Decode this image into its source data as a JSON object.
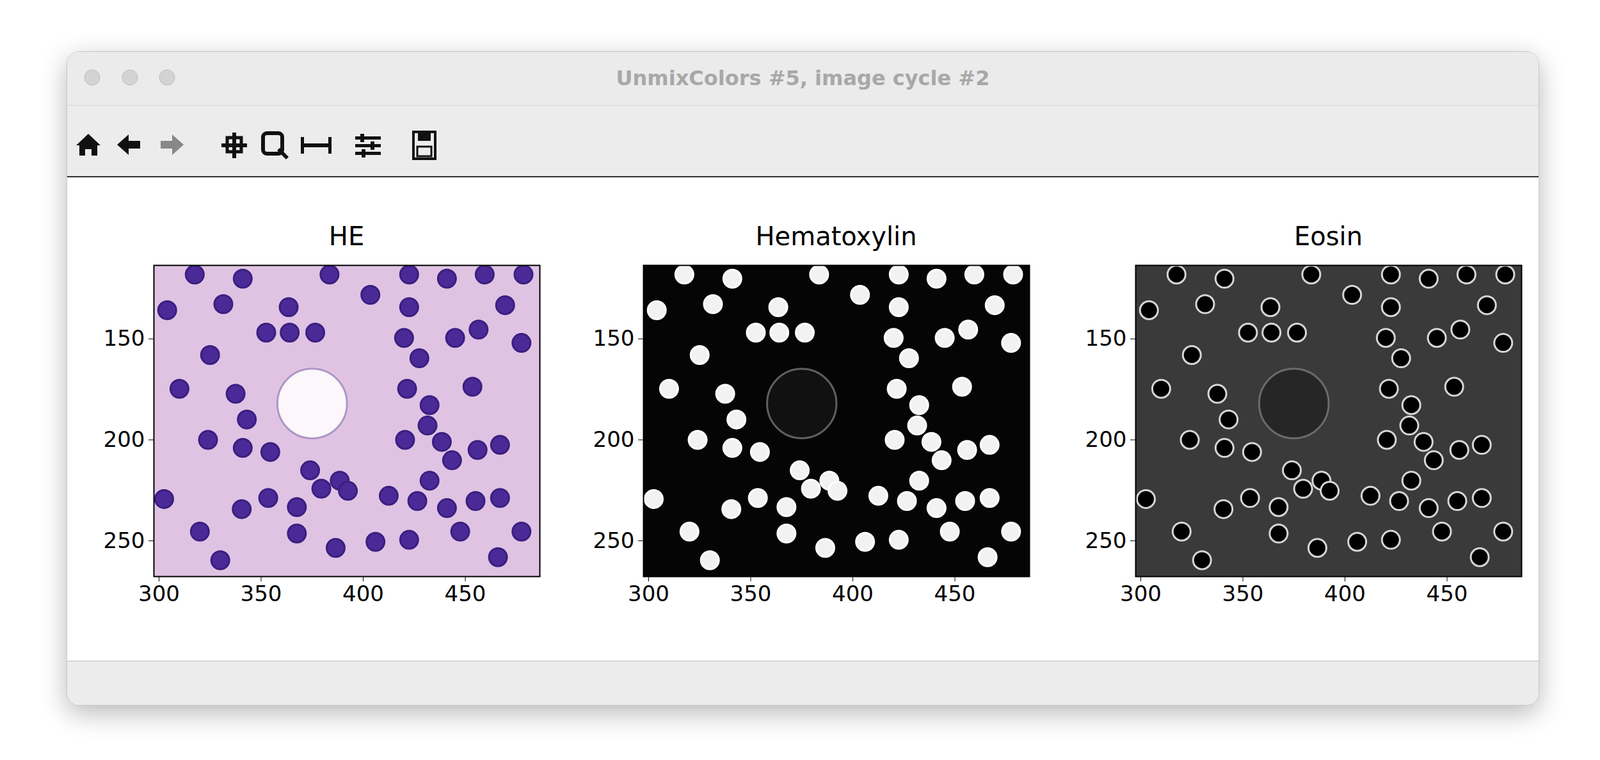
{
  "window": {
    "title": "UnmixColors #5, image cycle #2"
  },
  "specimen": {
    "nuclei": [
      [
        317.5,
        118.1
      ],
      [
        341,
        120.2
      ],
      [
        383.5,
        118.1
      ],
      [
        422.5,
        118.1
      ],
      [
        441,
        120.2
      ],
      [
        459.5,
        118.1
      ],
      [
        478.5,
        118.1
      ],
      [
        304,
        135.8
      ],
      [
        331.5,
        132.8
      ],
      [
        363.5,
        134.3
      ],
      [
        403.5,
        128.2
      ],
      [
        422.5,
        134.3
      ],
      [
        469.5,
        133.3
      ],
      [
        325,
        158
      ],
      [
        352.5,
        146.9
      ],
      [
        364,
        146.9
      ],
      [
        376.5,
        146.9
      ],
      [
        420,
        149.5
      ],
      [
        445,
        149.5
      ],
      [
        456.5,
        145.4
      ],
      [
        477.5,
        152
      ],
      [
        427.5,
        159.6
      ],
      [
        310,
        174.7
      ],
      [
        337.5,
        177.2
      ],
      [
        343,
        189.9
      ],
      [
        421.5,
        174.7
      ],
      [
        453.5,
        173.7
      ],
      [
        432.5,
        182.8
      ],
      [
        431.5,
        192.9
      ],
      [
        324,
        200
      ],
      [
        341,
        204
      ],
      [
        354.5,
        206
      ],
      [
        374,
        215.1
      ],
      [
        388.5,
        220.2
      ],
      [
        420.5,
        200
      ],
      [
        438.5,
        201
      ],
      [
        443.5,
        210.1
      ],
      [
        432.5,
        220.2
      ],
      [
        456,
        205
      ],
      [
        467,
        202.5
      ],
      [
        302.5,
        229.3
      ],
      [
        340.5,
        234.3
      ],
      [
        353.5,
        228.8
      ],
      [
        367.5,
        233.3
      ],
      [
        379.5,
        224.2
      ],
      [
        392.5,
        225.2
      ],
      [
        412.5,
        227.7
      ],
      [
        426.5,
        230.3
      ],
      [
        441,
        233.8
      ],
      [
        455,
        230.3
      ],
      [
        467,
        228.8
      ],
      [
        320,
        245.4
      ],
      [
        367.5,
        246.4
      ],
      [
        386.5,
        253.5
      ],
      [
        406,
        250.5
      ],
      [
        422.5,
        249.5
      ],
      [
        447.5,
        245.4
      ],
      [
        477.5,
        245.4
      ],
      [
        330,
        259.6
      ],
      [
        466,
        258.1
      ]
    ],
    "lumen": {
      "x": 375,
      "y": 182,
      "r": 17
    }
  },
  "chart_data": [
    {
      "type": "image",
      "title": "HE",
      "xlim": [
        297.5,
        486.5
      ],
      "ylim": [
        267.7,
        113.6
      ],
      "xticks": [
        300,
        350,
        400,
        450
      ],
      "yticks": [
        150,
        200,
        250
      ],
      "colors": [
        "#e0c3e3",
        "#4b2a98",
        "#3a1f80",
        "#fbf7fb"
      ]
    },
    {
      "type": "image",
      "title": "Hematoxylin",
      "xlim": [
        297.5,
        486.5
      ],
      "ylim": [
        267.7,
        113.6
      ],
      "xticks": [
        300,
        350,
        400,
        450
      ],
      "yticks": [
        150,
        200,
        250
      ],
      "colors": [
        "#050505",
        "#f2f2f2",
        "#ffffff",
        "#111111"
      ]
    },
    {
      "type": "image",
      "title": "Eosin",
      "xlim": [
        297.5,
        486.5
      ],
      "ylim": [
        267.7,
        113.6
      ],
      "xticks": [
        300,
        350,
        400,
        450
      ],
      "yticks": [
        150,
        200,
        250
      ],
      "colors": [
        "#3a3a3a",
        "#000000",
        "#d6d6d6",
        "#262626"
      ]
    }
  ]
}
